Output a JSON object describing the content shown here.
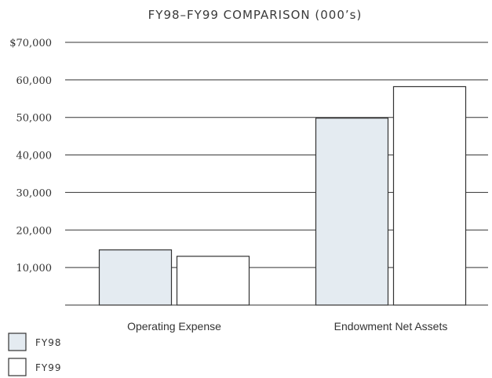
{
  "chart_data": {
    "type": "bar",
    "title": "FY98–FY99 COMPARISON (000’s)",
    "xlabel": "",
    "ylabel": "",
    "categories": [
      "Operating Expense",
      "Endowment Net Assets"
    ],
    "series": [
      {
        "name": "FY98",
        "values": [
          14700,
          49800
        ],
        "color": "#e4ebf1"
      },
      {
        "name": "FY99",
        "values": [
          13000,
          58200
        ],
        "color": "#ffffff"
      }
    ],
    "ylim": [
      0,
      70000
    ],
    "yticks": [
      {
        "value": 10000,
        "label": "10,000"
      },
      {
        "value": 20000,
        "label": "20,000"
      },
      {
        "value": 30000,
        "label": "30,000"
      },
      {
        "value": 40000,
        "label": "40,000"
      },
      {
        "value": 50000,
        "label": "50,000"
      },
      {
        "value": 60000,
        "label": "60,000"
      },
      {
        "value": 70000,
        "label": "$70,000"
      }
    ],
    "grid": true,
    "legend_position": "bottom-left",
    "gridline_color": "#333333",
    "bar_stroke_color": "#333333"
  }
}
